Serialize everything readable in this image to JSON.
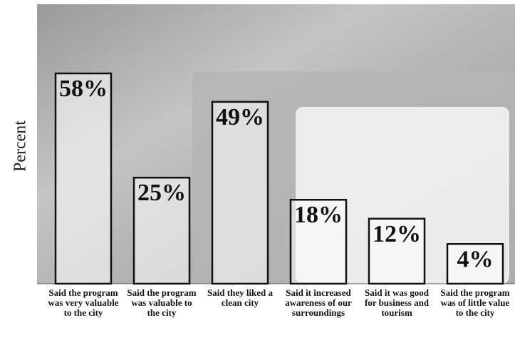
{
  "chart_data": {
    "type": "bar",
    "y_label": "Percent",
    "categories": [
      "Said the program was very valuable to the city",
      "Said the program was valuable to the city",
      "Said they liked a clean city",
      "Said it increased awareness of our surroundings",
      "Said it was good for business and tourism",
      "Said the program was of little value to the city"
    ],
    "values": [
      58,
      25,
      49,
      18,
      12,
      4
    ],
    "value_labels": [
      "58%",
      "25%",
      "49%",
      "18%",
      "12%",
      "4%"
    ]
  }
}
